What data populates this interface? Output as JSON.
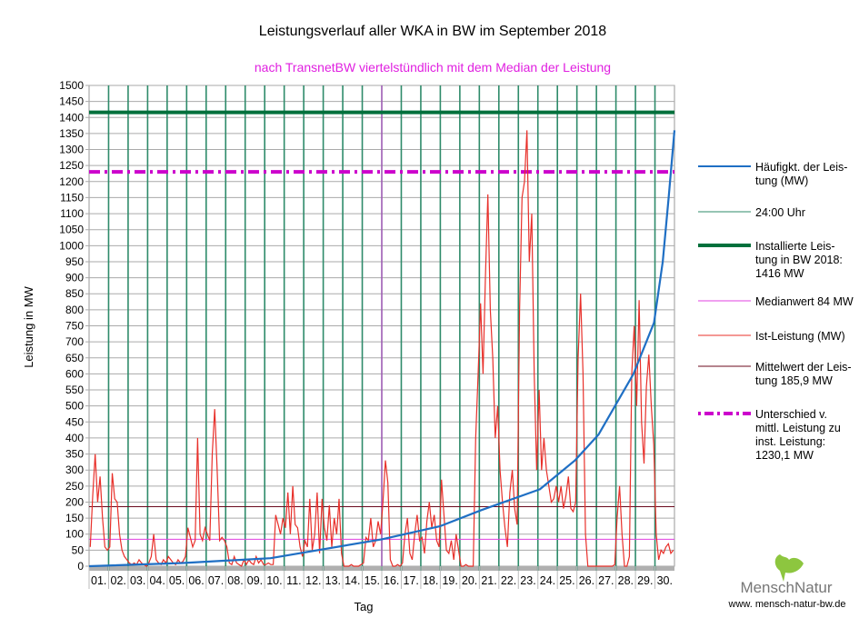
{
  "chart_data": {
    "type": "line",
    "title": "Leistungsverlauf aller WKA in BW im September 2018",
    "subtitle": "nach TransnetBW viertelstündlich mit dem Median der Leistung",
    "xlabel": "Tag",
    "ylabel": "Leistung in MW",
    "ylim": [
      0,
      1500
    ],
    "ytick_step": 50,
    "grid": true,
    "legend_placement": "right",
    "categories": [
      "01.",
      "02.",
      "03.",
      "04.",
      "05.",
      "06.",
      "07.",
      "08.",
      "09.",
      "10.",
      "11.",
      "12.",
      "13.",
      "14.",
      "15.",
      "16.",
      "17.",
      "18.",
      "19.",
      "20.",
      "21.",
      "22.",
      "23.",
      "24.",
      "25.",
      "26.",
      "27.",
      "28.",
      "29.",
      "30."
    ],
    "ist_leistung_3h": [
      [
        60,
        220,
        350,
        200,
        280,
        150,
        60,
        50
      ],
      [
        60,
        290,
        210,
        200,
        100,
        50,
        30,
        20
      ],
      [
        10,
        5,
        10,
        5,
        20,
        10,
        5,
        0
      ],
      [
        10,
        30,
        100,
        20,
        10,
        5,
        20,
        10
      ],
      [
        30,
        20,
        10,
        5,
        20,
        10,
        15,
        30
      ],
      [
        120,
        90,
        60,
        80,
        400,
        100,
        80,
        120
      ],
      [
        100,
        80,
        350,
        490,
        300,
        80,
        90,
        80
      ],
      [
        60,
        10,
        5,
        30,
        10,
        5,
        0,
        20
      ],
      [
        5,
        20,
        10,
        5,
        30,
        10,
        20,
        5
      ],
      [
        5,
        10,
        5,
        5,
        160,
        130,
        100,
        150
      ],
      [
        120,
        230,
        100,
        250,
        130,
        120,
        60,
        30
      ],
      [
        80,
        60,
        210,
        50,
        100,
        230,
        40,
        210
      ],
      [
        120,
        80,
        190,
        60,
        150,
        100,
        210,
        40
      ],
      [
        0,
        0,
        0,
        5,
        0,
        0,
        0,
        5
      ],
      [
        10,
        90,
        80,
        150,
        60,
        80,
        140,
        100
      ],
      [
        200,
        330,
        260,
        20,
        0,
        0,
        5,
        0
      ],
      [
        10,
        100,
        150,
        40,
        20,
        100,
        160,
        80
      ],
      [
        90,
        40,
        140,
        200,
        120,
        160,
        80,
        60
      ],
      [
        270,
        160,
        50,
        40,
        80,
        20,
        100,
        50
      ],
      [
        0,
        0,
        5,
        0,
        0,
        0,
        400,
        600
      ],
      [
        820,
        600,
        900,
        1160,
        800,
        650,
        400,
        500
      ],
      [
        300,
        200,
        120,
        60,
        230,
        300,
        180,
        130
      ],
      [
        800,
        1150,
        1200,
        1360,
        950,
        1100,
        600,
        300
      ],
      [
        550,
        300,
        400,
        300,
        250,
        200,
        210,
        250
      ],
      [
        200,
        250,
        180,
        220,
        280,
        180,
        170,
        200
      ],
      [
        650,
        850,
        600,
        100,
        0,
        0,
        0,
        0
      ],
      [
        0,
        0,
        0,
        0,
        0,
        0,
        0,
        5
      ],
      [
        150,
        250,
        100,
        0,
        0,
        30,
        600,
        750
      ],
      [
        500,
        830,
        450,
        320,
        560,
        660,
        500,
        380
      ],
      [
        100,
        20,
        50,
        40,
        60,
        70,
        40,
        50
      ]
    ],
    "haeufigkeit_curve": {
      "percentile": [
        0,
        0.16,
        0.31,
        0.5,
        0.6,
        0.67,
        0.77,
        0.83,
        0.87,
        0.93,
        0.965,
        0.98,
        0.99,
        1.0
      ],
      "value": [
        0,
        10,
        25,
        84,
        125,
        175,
        240,
        330,
        410,
        600,
        760,
        950,
        1150,
        1360
      ]
    },
    "median_position_percentile": 0.5,
    "reference_lines": {
      "installed": 1416,
      "median": 84,
      "mean": 185.9,
      "difference": 1230.1
    },
    "legend": [
      {
        "label1": "Häufigkt. der Leis-",
        "label2": "tung (MW)",
        "label3": "",
        "label4": "",
        "color": "#1f6fc4",
        "style": "solid"
      },
      {
        "label1": "24:00 Uhr",
        "label2": "",
        "label3": "",
        "label4": "",
        "color": "#2e8b6a",
        "style": "thin"
      },
      {
        "label1": "Installierte Leis-",
        "label2": "tung in BW 2018:",
        "label3": "1416 MW",
        "label4": "",
        "color": "#00703c",
        "style": "thick"
      },
      {
        "label1": "Medianwert 84 MW",
        "label2": "",
        "label3": "",
        "label4": "",
        "color": "#e040e0",
        "style": "thin"
      },
      {
        "label1": "Ist-Leistung (MW)",
        "label2": "",
        "label3": "",
        "label4": "",
        "color": "#e8302a",
        "style": "thin"
      },
      {
        "label1": "Mittelwert der Leis-",
        "label2": "tung 185,9 MW",
        "label3": "",
        "label4": "",
        "color": "#6b0a1e",
        "style": "thin"
      },
      {
        "label1": "Unterschied v.",
        "label2": "mittl. Leistung zu",
        "label3": "inst. Leistung:",
        "label4": "1230,1 MW",
        "color": "#cc00cc",
        "style": "dashdot"
      }
    ]
  },
  "logo": {
    "brand": "MenschNatur",
    "url": "www. mensch-natur-bw.de"
  }
}
